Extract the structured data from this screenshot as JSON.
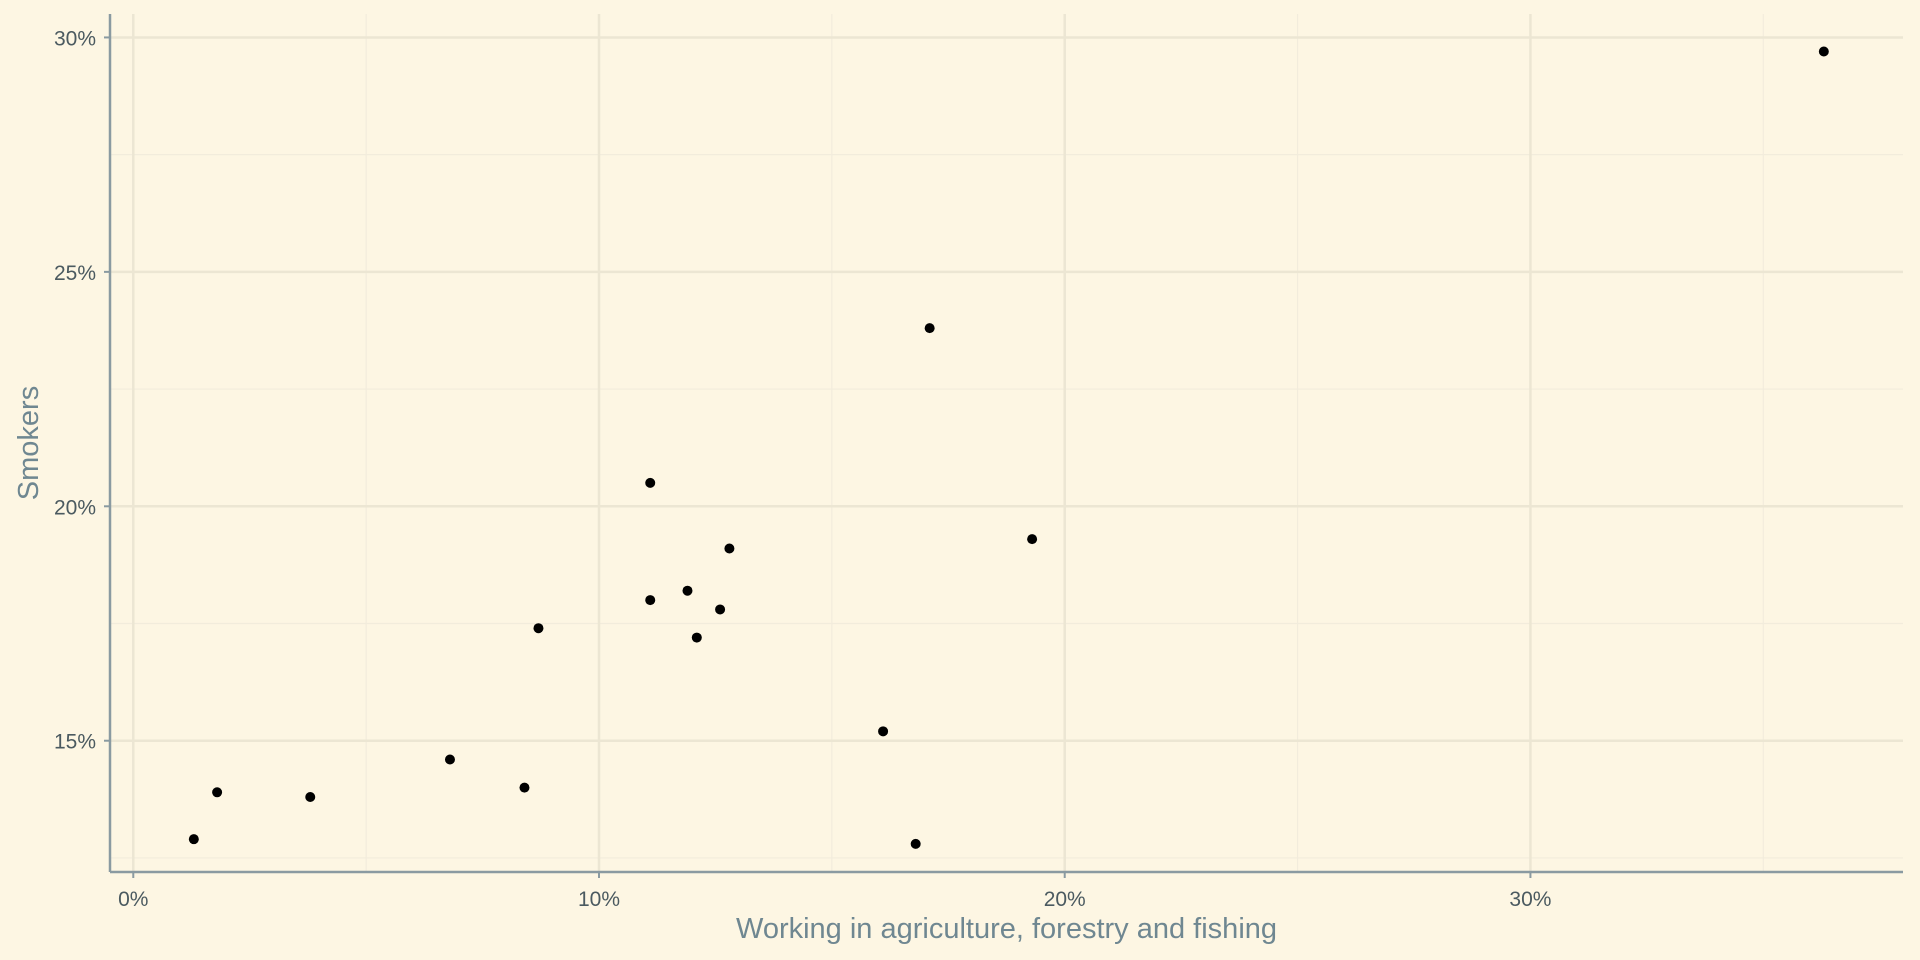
{
  "chart_data": {
    "type": "scatter",
    "xlabel": "Working in agriculture, forestry and fishing",
    "ylabel": "Smokers",
    "xlim": [
      -0.5,
      38
    ],
    "ylim": [
      12.2,
      30.5
    ],
    "x_ticks": [
      0,
      10,
      20,
      30
    ],
    "x_tick_labels": [
      "0%",
      "10%",
      "20%",
      "30%"
    ],
    "y_ticks": [
      15,
      20,
      25,
      30
    ],
    "y_tick_labels": [
      "15%",
      "20%",
      "25%",
      "30%"
    ],
    "x_minor": [
      5,
      15,
      25,
      35
    ],
    "y_minor": [
      12.5,
      17.5,
      22.5,
      27.5
    ],
    "grid": true,
    "points": [
      {
        "x": 1.3,
        "y": 12.9
      },
      {
        "x": 1.8,
        "y": 13.9
      },
      {
        "x": 3.8,
        "y": 13.8
      },
      {
        "x": 6.8,
        "y": 14.6
      },
      {
        "x": 8.4,
        "y": 14.0
      },
      {
        "x": 8.7,
        "y": 17.4
      },
      {
        "x": 11.1,
        "y": 20.5
      },
      {
        "x": 11.1,
        "y": 18.0
      },
      {
        "x": 11.9,
        "y": 18.2
      },
      {
        "x": 12.1,
        "y": 17.2
      },
      {
        "x": 12.6,
        "y": 17.8
      },
      {
        "x": 12.8,
        "y": 19.1
      },
      {
        "x": 16.1,
        "y": 15.2
      },
      {
        "x": 16.8,
        "y": 12.8
      },
      {
        "x": 17.1,
        "y": 23.8
      },
      {
        "x": 19.3,
        "y": 19.3
      },
      {
        "x": 36.3,
        "y": 29.7
      }
    ]
  }
}
